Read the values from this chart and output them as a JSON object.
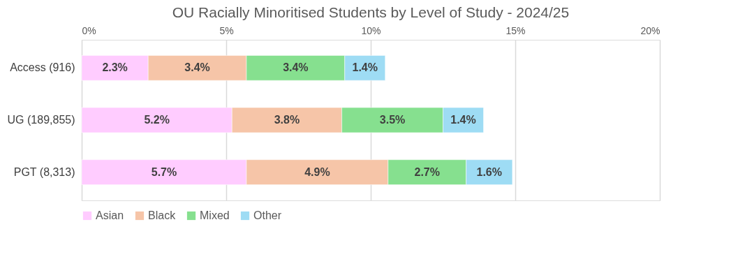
{
  "chart_data": {
    "type": "bar",
    "orientation": "horizontal",
    "stacked": true,
    "title": "OU Racially Minoritised Students by Level of Study - 2024/25",
    "categories": [
      "Access (916)",
      "UG (189,855)",
      "PGT (8,313)"
    ],
    "series": [
      {
        "name": "Asian",
        "color": "#ffccff",
        "values": [
          2.3,
          5.2,
          5.7
        ],
        "value_labels": [
          "2.3%",
          "5.2%",
          "5.7%"
        ]
      },
      {
        "name": "Black",
        "color": "#f6c5a8",
        "values": [
          3.4,
          3.8,
          4.9
        ],
        "value_labels": [
          "3.4%",
          "3.8%",
          "4.9%"
        ]
      },
      {
        "name": "Mixed",
        "color": "#86e08f",
        "values": [
          3.4,
          3.5,
          2.7
        ],
        "value_labels": [
          "3.4%",
          "3.5%",
          "2.7%"
        ]
      },
      {
        "name": "Other",
        "color": "#9edcf4",
        "values": [
          1.4,
          1.4,
          1.6
        ],
        "value_labels": [
          "1.4%",
          "1.4%",
          "1.6%"
        ]
      }
    ],
    "xlim": [
      0,
      20
    ],
    "xticks": [
      {
        "value": 0,
        "label": "0%"
      },
      {
        "value": 5,
        "label": "5%"
      },
      {
        "value": 10,
        "label": "10%"
      },
      {
        "value": 15,
        "label": "15%"
      },
      {
        "value": 20,
        "label": "20%"
      }
    ],
    "grid": "x",
    "legend": "bottom"
  }
}
